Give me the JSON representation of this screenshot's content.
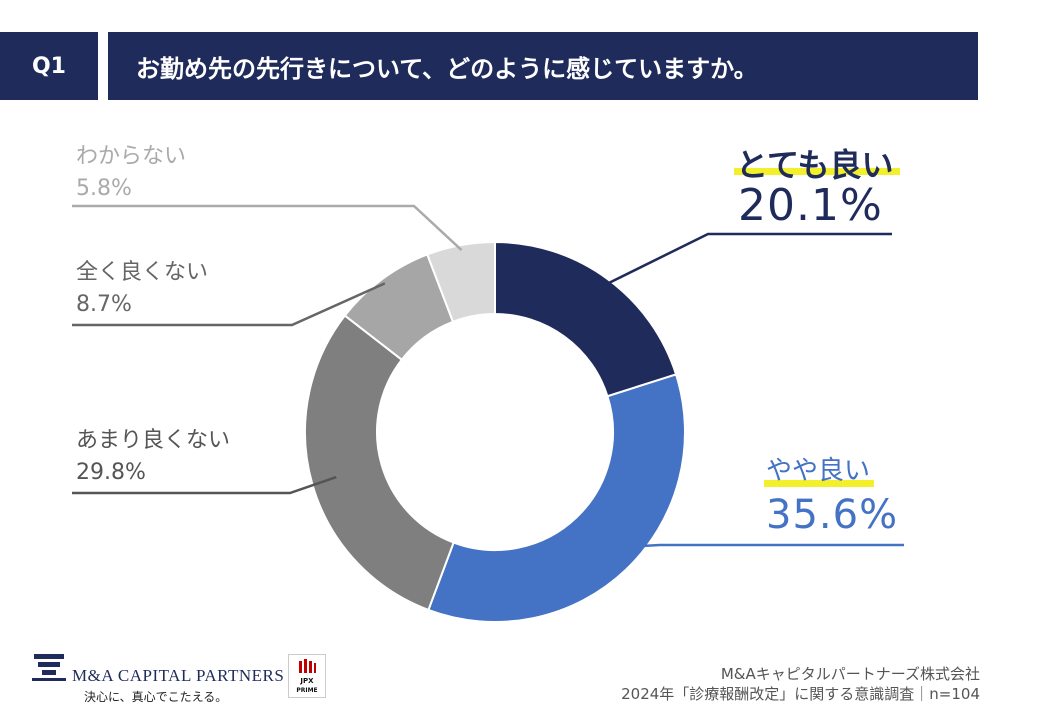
{
  "header": {
    "q_label": "Q1",
    "question": "お勤め先の先行きについて、どのように感じていますか。"
  },
  "chart_data": {
    "type": "pie",
    "donut": true,
    "slices": [
      {
        "label": "とても良い",
        "value": 20.1,
        "display": "20.1%",
        "color": "#1f2b5b"
      },
      {
        "label": "やや良い",
        "value": 35.6,
        "display": "35.6%",
        "color": "#4472c4"
      },
      {
        "label": "あまり良くない",
        "value": 29.8,
        "display": "29.8%",
        "color": "#7f7f7f"
      },
      {
        "label": "全く良くない",
        "value": 8.7,
        "display": "8.7%",
        "color": "#a6a6a6"
      },
      {
        "label": "わからない",
        "value": 5.8,
        "display": "5.8%",
        "color": "#d9d9d9"
      }
    ]
  },
  "logo": {
    "name": "M&A CAPITAL PARTNERS",
    "tagline": "決心に、真心でこたえる。",
    "jpx_top": "JPX",
    "jpx_bottom": "PRIME"
  },
  "footer": {
    "company": "M&Aキャピタルパートナーズ株式会社",
    "survey": "2024年「診療報酬改定」に関する意識調査｜n=104"
  }
}
